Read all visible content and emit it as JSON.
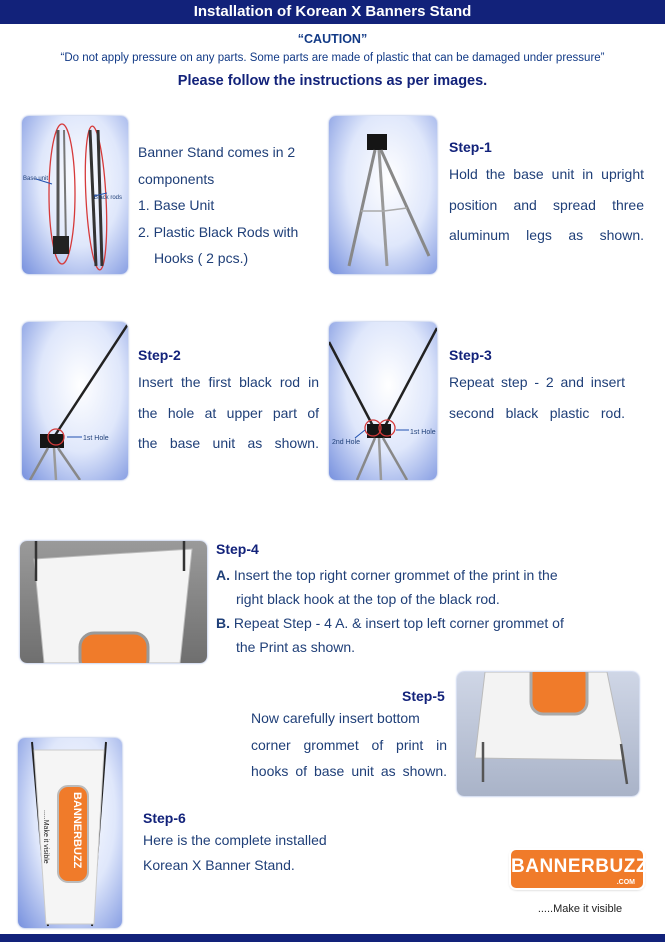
{
  "title": "Installation of Korean X Banners Stand",
  "caution_title": "“CAUTION”",
  "caution_text": "“Do not apply pressure on any parts. Some parts are made of plastic that can be damaged under pressure”",
  "follow_text": "Please follow the instructions as per images.",
  "intro": {
    "lines": [
      "Banner Stand comes in 2",
      "components",
      "1. Base Unit",
      "2. Plastic Black Rods with",
      "Hooks ( 2 pcs.)"
    ],
    "photo_labels": {
      "base": "Base unit",
      "rods": "Black rods"
    }
  },
  "step1": {
    "heading": "Step-1",
    "lines": [
      "Hold the base unit in upright",
      "position and spread three",
      "aluminum legs as shown."
    ]
  },
  "step2": {
    "heading": "Step-2",
    "lines": [
      "Insert the first black rod in",
      "the hole at upper part of",
      "the base unit as shown."
    ],
    "photo_label": "1st Hole"
  },
  "step3": {
    "heading": "Step-3",
    "lines": [
      "Repeat step - 2 and insert",
      "second black plastic rod."
    ],
    "photo_labels": {
      "first": "1st Hole",
      "second": "2nd Hole"
    }
  },
  "step4": {
    "heading": "Step-4",
    "items": [
      {
        "marker": "A.",
        "lines": [
          "Insert the top right corner grommet of the print in the",
          "right black hook at the top of the black rod."
        ]
      },
      {
        "marker": "B.",
        "lines": [
          "Repeat Step - 4 A. & insert top left corner grommet of",
          "the Print as shown."
        ]
      }
    ]
  },
  "step5": {
    "heading": "Step-5",
    "lines": [
      "Now carefully  insert bottom",
      "corner grommet of print in",
      "hooks of base unit as shown."
    ]
  },
  "step6": {
    "heading": "Step-6",
    "lines": [
      "Here is the complete installed",
      "Korean X Banner Stand."
    ],
    "banner_brand": "BANNERBUZZ",
    "banner_tag": ".....Make it visible"
  },
  "logo": {
    "brand": "BANNERBUZZ",
    "domain": ".COM",
    "tagline": ".....Make it visible"
  },
  "colors": {
    "header_bg": "#12227a",
    "text": "#1f3f78",
    "heading": "#12227a",
    "brand_orange": "#f07b2a"
  }
}
